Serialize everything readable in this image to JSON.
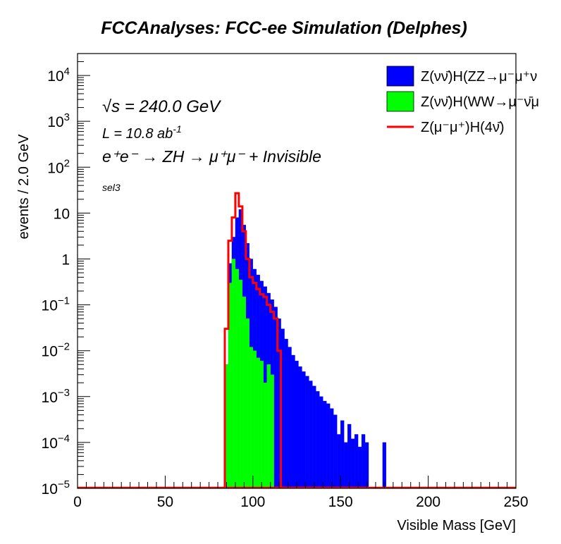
{
  "title": "FCCAnalyses: FCC-ee Simulation (Delphes)",
  "annotations": {
    "sqrt_s_symbol": "√s",
    "sqrt_s_value": " = 240.0 GeV",
    "lumi": "L = 10.8 ab",
    "lumi_exp": "-1",
    "process": "e⁺e⁻ → ZH → μ⁺μ⁻ + Invisible",
    "selection": "sel3"
  },
  "chart_data": {
    "type": "area",
    "xlabel": "Visible Mass [GeV]",
    "ylabel": "events / 2.0 GeV",
    "xlim": [
      0,
      250
    ],
    "ylim": [
      1e-05,
      30000
    ],
    "yscale": "log",
    "bin_width": 2.0,
    "x_ticks": [
      "0",
      "50",
      "100",
      "150",
      "200",
      "250"
    ],
    "y_ticks": [
      {
        "base": "10",
        "exp": "−5",
        "value": 1e-05
      },
      {
        "base": "10",
        "exp": "−4",
        "value": 0.0001
      },
      {
        "base": "10",
        "exp": "−3",
        "value": 0.001
      },
      {
        "base": "10",
        "exp": "−2",
        "value": 0.01
      },
      {
        "base": "10",
        "exp": "−1",
        "value": 0.1
      },
      {
        "base": "1",
        "exp": "",
        "value": 1
      },
      {
        "base": "10",
        "exp": "",
        "value": 10
      },
      {
        "base": "10",
        "exp": "2",
        "value": 100
      },
      {
        "base": "10",
        "exp": "3",
        "value": 1000
      },
      {
        "base": "10",
        "exp": "4",
        "value": 10000
      }
    ],
    "legend_position": "top-right",
    "series": [
      {
        "name": "Z(νν̄)H(ZZ→μ⁻μ⁺ν",
        "style": "filled",
        "color": "#0000ff",
        "x": [
          84,
          86,
          88,
          90,
          92,
          94,
          96,
          98,
          100,
          102,
          104,
          106,
          108,
          110,
          112,
          114,
          116,
          118,
          120,
          122,
          124,
          126,
          128,
          130,
          132,
          134,
          136,
          138,
          140,
          142,
          144,
          146,
          148,
          150,
          152,
          154,
          156,
          158,
          160,
          162,
          164,
          166,
          168,
          170,
          172,
          174,
          176
        ],
        "values": [
          0.005,
          0.8,
          3.0,
          8.0,
          12.0,
          5.5,
          2.2,
          1.0,
          0.6,
          0.45,
          0.33,
          0.25,
          0.18,
          0.13,
          0.09,
          0.05,
          0.03,
          0.018,
          0.012,
          0.008,
          0.006,
          0.0045,
          0.0035,
          0.0028,
          0.0022,
          0.0017,
          0.0013,
          0.001,
          0.0008,
          0.0007,
          0.00055,
          0.0004,
          0.00015,
          0.0003,
          0.0001,
          0.00025,
          0.00012,
          0.00015,
          8e-05,
          0.00015,
          0.0001,
          0,
          0,
          0,
          0,
          0.0001,
          0
        ]
      },
      {
        "name": "Z(νν̄)H(WW→μ⁻ν̄μ",
        "style": "filled",
        "color": "#00ff00",
        "x": [
          84,
          86,
          88,
          90,
          92,
          94,
          96,
          98,
          100,
          102,
          104,
          106,
          108,
          110,
          112
        ],
        "values": [
          0.005,
          0.3,
          1.0,
          0.6,
          0.35,
          0.15,
          0.05,
          0.012,
          0.01,
          0.007,
          0.006,
          0.002,
          0.005,
          0.003,
          0
        ]
      },
      {
        "name": "Z(μ⁻μ⁺)H(4ν̄)",
        "style": "line",
        "color": "#ff0000",
        "x": [
          84,
          86,
          88,
          90,
          92,
          94,
          96,
          98,
          100,
          102,
          104,
          106,
          108,
          110,
          112,
          114,
          116
        ],
        "values": [
          0.03,
          2.5,
          8.0,
          27.0,
          14.0,
          4.0,
          1.0,
          0.4,
          0.3,
          0.22,
          0.17,
          0.15,
          0.1,
          0.07,
          0.05,
          0.01,
          0
        ]
      }
    ]
  }
}
